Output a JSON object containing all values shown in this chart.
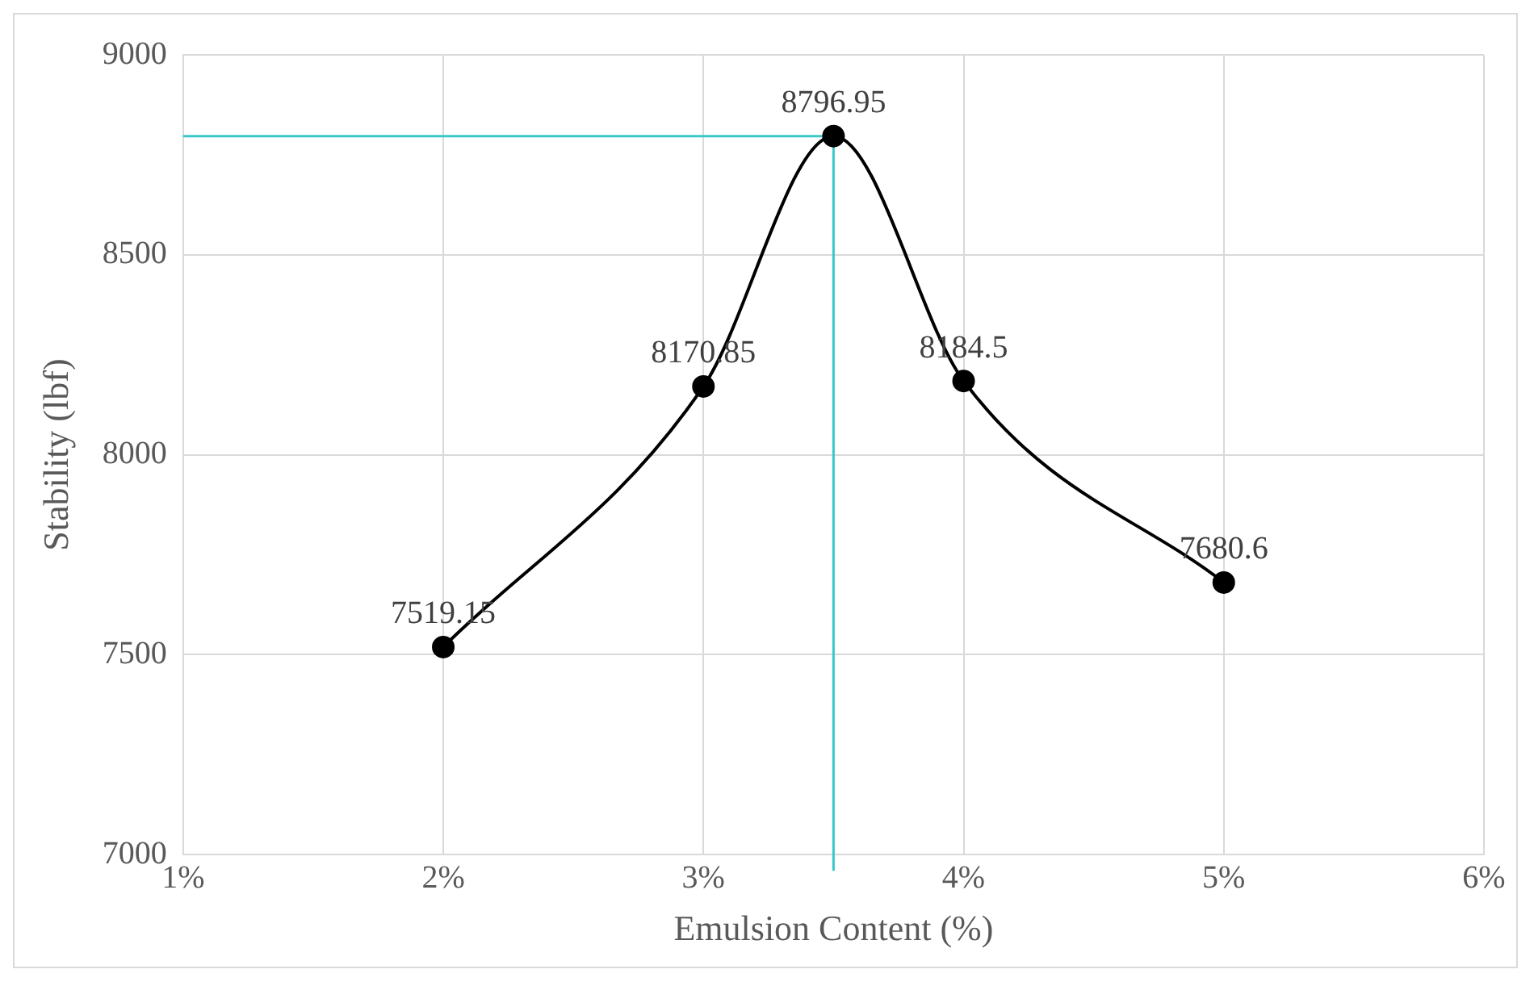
{
  "chart_data": {
    "type": "line",
    "xlabel": "Emulsion Content (%)",
    "ylabel": "Stability (lbf)",
    "x": [
      2,
      3,
      3.5,
      4,
      5
    ],
    "series": [
      {
        "color": "#000000",
        "values": [
          7519.15,
          8170.85,
          8796.95,
          8184.5,
          7680.6
        ]
      }
    ],
    "xlim": [
      1,
      6
    ],
    "xticks": [
      {
        "value": 1,
        "label": "1%"
      },
      {
        "value": 2,
        "label": "2%"
      },
      {
        "value": 3,
        "label": "3%"
      },
      {
        "value": 4,
        "label": "4%"
      },
      {
        "value": 5,
        "label": "5%"
      },
      {
        "value": 6,
        "label": "6%"
      }
    ],
    "ylim": [
      7000,
      9000
    ],
    "yticks": [
      7000,
      7500,
      8000,
      8500,
      9000
    ],
    "ref_lines": [
      {
        "axis": "x",
        "value": 3.5,
        "color": "#3cc8c8"
      },
      {
        "axis": "y",
        "value": 8796.95,
        "color": "#3cc8c8"
      }
    ],
    "data_labels": true,
    "grid": true,
    "legend": false,
    "marker": "circle",
    "line_style": "solid"
  }
}
